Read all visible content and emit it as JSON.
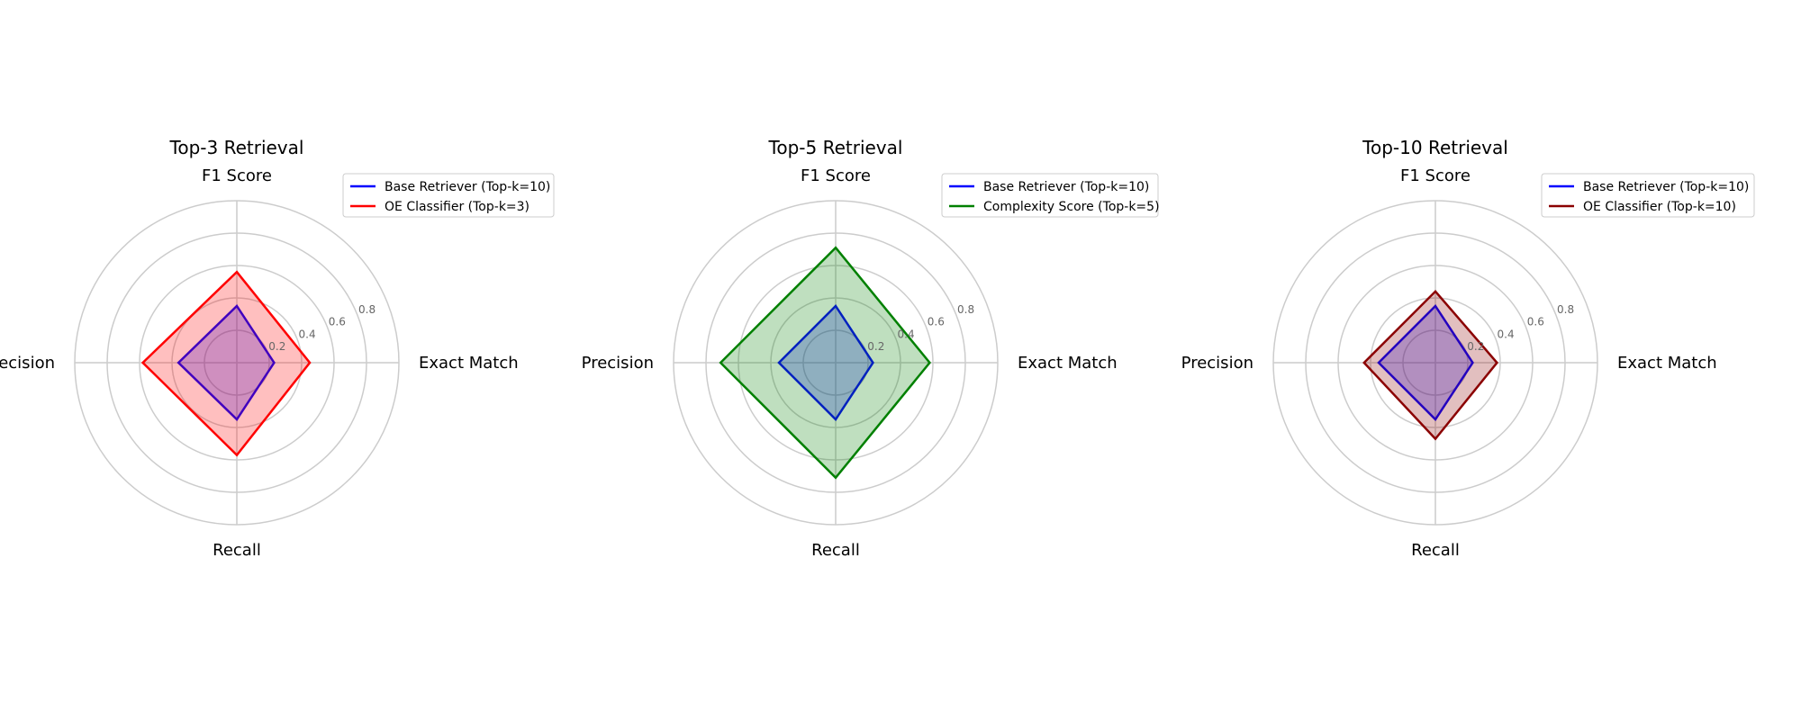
{
  "chart_data": [
    {
      "type": "radar",
      "title": "Top-3 Retrieval",
      "axes": [
        "F1 Score",
        "Exact Match",
        "Recall",
        "Precision"
      ],
      "rlim": [
        0,
        1
      ],
      "r_ticks": [
        "0.2",
        "0.4",
        "0.6",
        "0.8"
      ],
      "grid": true,
      "legend_position": "top-right",
      "series": [
        {
          "name": "Base Retriever (Top-k=10)",
          "values": [
            0.35,
            0.23,
            0.35,
            0.36
          ],
          "color": "#0000ff",
          "fill": false
        },
        {
          "name": "OE Classifier (Top-k=3)",
          "values": [
            0.56,
            0.45,
            0.57,
            0.58
          ],
          "color": "#ff0000",
          "fill": true
        }
      ]
    },
    {
      "type": "radar",
      "title": "Top-5 Retrieval",
      "axes": [
        "F1 Score",
        "Exact Match",
        "Recall",
        "Precision"
      ],
      "rlim": [
        0,
        1
      ],
      "r_ticks": [
        "0.2",
        "0.4",
        "0.6",
        "0.8"
      ],
      "grid": true,
      "legend_position": "top-right",
      "series": [
        {
          "name": "Base Retriever (Top-k=10)",
          "values": [
            0.35,
            0.23,
            0.35,
            0.35
          ],
          "color": "#0000ff",
          "fill": false
        },
        {
          "name": "Complexity Score (Top-k=5)",
          "values": [
            0.71,
            0.58,
            0.71,
            0.71
          ],
          "color": "#008000",
          "fill": true
        }
      ]
    },
    {
      "type": "radar",
      "title": "Top-10 Retrieval",
      "axes": [
        "F1 Score",
        "Exact Match",
        "Recall",
        "Precision"
      ],
      "rlim": [
        0,
        1
      ],
      "r_ticks": [
        "0.2",
        "0.4",
        "0.6",
        "0.8"
      ],
      "grid": true,
      "legend_position": "top-right",
      "series": [
        {
          "name": "Base Retriever (Top-k=10)",
          "values": [
            0.35,
            0.23,
            0.35,
            0.35
          ],
          "color": "#0000ff",
          "fill": false
        },
        {
          "name": "OE Classifier (Top-k=10)",
          "values": [
            0.44,
            0.38,
            0.47,
            0.44
          ],
          "color": "#8b0000",
          "fill": true
        }
      ]
    }
  ]
}
